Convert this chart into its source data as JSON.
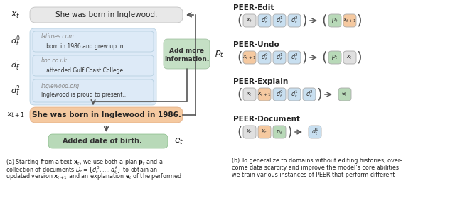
{
  "fig_width": 6.4,
  "fig_height": 3.03,
  "bg_color": "#ffffff",
  "colors": {
    "gray_box": "#e8e8e8",
    "blue_box": "#c8dff0",
    "blue_box_light": "#ddeaf7",
    "green_box": "#b8d9b8",
    "orange_box": "#f5c9a0",
    "doc_bg": "#ddeaf7",
    "plan_green": "#c5e0c5",
    "arrow_color": "#555555",
    "text_dark": "#222222",
    "text_gray": "#888888",
    "border_gray": "#cccccc"
  },
  "peer_tasks": [
    {
      "title": "PEER-Edit",
      "inputs": [
        {
          "label": "x_t",
          "color": "#e0e0e0"
        },
        {
          "label": "d_t^0",
          "color": "#c8dff0"
        },
        {
          "label": "d_t^1",
          "color": "#c8dff0"
        },
        {
          "label": "d_t^2",
          "color": "#c8dff0"
        }
      ],
      "outputs": [
        {
          "label": "p_t",
          "color": "#b8d9b8"
        },
        {
          "label": "x_{t+1}",
          "color": "#f5c9a0"
        }
      ]
    },
    {
      "title": "PEER-Undo",
      "inputs": [
        {
          "label": "x_{t+1}",
          "color": "#f5c9a0"
        },
        {
          "label": "d_t^0",
          "color": "#c8dff0"
        },
        {
          "label": "d_t^1",
          "color": "#c8dff0"
        },
        {
          "label": "d_t^2",
          "color": "#c8dff0"
        }
      ],
      "outputs": [
        {
          "label": "p_t",
          "color": "#b8d9b8"
        },
        {
          "label": "x_t",
          "color": "#e0e0e0"
        }
      ]
    },
    {
      "title": "PEER-Explain",
      "inputs": [
        {
          "label": "x_t",
          "color": "#e0e0e0"
        },
        {
          "label": "x_{t+1}",
          "color": "#f5c9a0"
        },
        {
          "label": "d_t^0",
          "color": "#c8dff0"
        },
        {
          "label": "d_t^1",
          "color": "#c8dff0"
        },
        {
          "label": "d_t^2",
          "color": "#c8dff0"
        }
      ],
      "outputs": [
        {
          "label": "e_t",
          "color": "#b8d9b8"
        }
      ]
    },
    {
      "title": "PEER-Document",
      "inputs": [
        {
          "label": "x_t",
          "color": "#e0e0e0"
        },
        {
          "label": "x_t",
          "color": "#f5c9a0"
        },
        {
          "label": "p_t",
          "color": "#b8d9b8"
        }
      ],
      "outputs": [
        {
          "label": "d_t^1",
          "color": "#c8dff0"
        }
      ]
    }
  ]
}
